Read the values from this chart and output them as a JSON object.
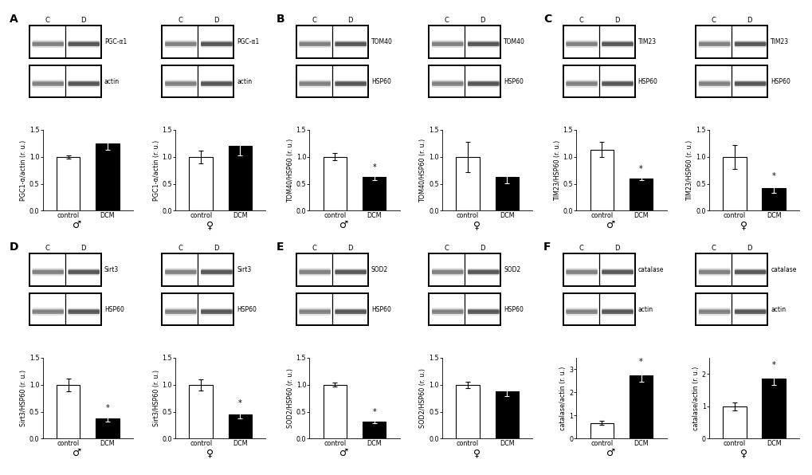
{
  "panels": [
    {
      "label": "A",
      "ylabel": "PGC1-α/actin (r. u.)",
      "blot_top": "PGC-α1",
      "blot_bottom": "actin",
      "male": {
        "control_val": 1.0,
        "control_sem": 0.03,
        "dcm_val": 1.25,
        "dcm_sem": 0.12,
        "significant": false,
        "ylim": [
          0,
          1.5
        ],
        "yticks": [
          0.0,
          0.5,
          1.0,
          1.5
        ]
      },
      "female": {
        "control_val": 1.0,
        "control_sem": 0.12,
        "dcm_val": 1.2,
        "dcm_sem": 0.18,
        "significant": false,
        "ylim": [
          0,
          1.5
        ],
        "yticks": [
          0.0,
          0.5,
          1.0,
          1.5
        ]
      }
    },
    {
      "label": "B",
      "ylabel": "TOM40/HSP60 (r. u.)",
      "blot_top": "TOM40",
      "blot_bottom": "HSP60",
      "male": {
        "control_val": 1.0,
        "control_sem": 0.07,
        "dcm_val": 0.62,
        "dcm_sem": 0.05,
        "significant": true,
        "ylim": [
          0,
          1.5
        ],
        "yticks": [
          0.0,
          0.5,
          1.0,
          1.5
        ]
      },
      "female": {
        "control_val": 1.0,
        "control_sem": 0.28,
        "dcm_val": 0.63,
        "dcm_sem": 0.12,
        "significant": false,
        "ylim": [
          0,
          1.5
        ],
        "yticks": [
          0.0,
          0.5,
          1.0,
          1.5
        ]
      }
    },
    {
      "label": "C",
      "ylabel": "TIM23/HSP60 (r. u.)",
      "blot_top": "TIM23",
      "blot_bottom": "HSP60",
      "male": {
        "control_val": 1.13,
        "control_sem": 0.14,
        "dcm_val": 0.6,
        "dcm_sem": 0.04,
        "significant": true,
        "ylim": [
          0,
          1.5
        ],
        "yticks": [
          0.0,
          0.5,
          1.0,
          1.5
        ]
      },
      "female": {
        "control_val": 1.0,
        "control_sem": 0.22,
        "dcm_val": 0.42,
        "dcm_sem": 0.09,
        "significant": true,
        "ylim": [
          0,
          1.5
        ],
        "yticks": [
          0.0,
          0.5,
          1.0,
          1.5
        ]
      }
    },
    {
      "label": "D",
      "ylabel": "Sirt3/HSP60 (r. u.)",
      "blot_top": "Sirt3",
      "blot_bottom": "HSP60",
      "male": {
        "control_val": 1.0,
        "control_sem": 0.12,
        "dcm_val": 0.38,
        "dcm_sem": 0.06,
        "significant": true,
        "ylim": [
          0,
          1.5
        ],
        "yticks": [
          0.0,
          0.5,
          1.0,
          1.5
        ]
      },
      "female": {
        "control_val": 1.0,
        "control_sem": 0.1,
        "dcm_val": 0.45,
        "dcm_sem": 0.08,
        "significant": true,
        "ylim": [
          0,
          1.5
        ],
        "yticks": [
          0.0,
          0.5,
          1.0,
          1.5
        ]
      }
    },
    {
      "label": "E",
      "ylabel": "SOD2/HSP60 (r. u.)",
      "blot_top": "SOD2",
      "blot_bottom": "HSP60",
      "male": {
        "control_val": 1.0,
        "control_sem": 0.04,
        "dcm_val": 0.32,
        "dcm_sem": 0.04,
        "significant": true,
        "ylim": [
          0,
          1.5
        ],
        "yticks": [
          0.0,
          0.5,
          1.0,
          1.5
        ]
      },
      "female": {
        "control_val": 1.0,
        "control_sem": 0.06,
        "dcm_val": 0.88,
        "dcm_sem": 0.09,
        "significant": false,
        "ylim": [
          0,
          1.5
        ],
        "yticks": [
          0.0,
          0.5,
          1.0,
          1.5
        ]
      }
    },
    {
      "label": "F",
      "ylabel": "catalase/actin (r. u.)",
      "blot_top": "catalase",
      "blot_bottom": "actin",
      "male": {
        "control_val": 0.68,
        "control_sem": 0.09,
        "dcm_val": 2.75,
        "dcm_sem": 0.28,
        "significant": true,
        "ylim": [
          0,
          3.5
        ],
        "yticks": [
          0,
          1,
          2,
          3
        ]
      },
      "female": {
        "control_val": 1.0,
        "control_sem": 0.12,
        "dcm_val": 1.85,
        "dcm_sem": 0.2,
        "significant": true,
        "ylim": [
          0,
          2.5
        ],
        "yticks": [
          0,
          1,
          2
        ]
      }
    }
  ],
  "bar_width": 0.6,
  "control_color": "#ffffff",
  "dcm_color": "#000000",
  "bar_edgecolor": "#000000",
  "background_color": "#ffffff",
  "font_size_ylabel": 5.8,
  "font_size_tick": 5.8,
  "font_size_panel_label": 10,
  "font_size_blot_label": 5.5,
  "font_size_cd": 6.0,
  "font_size_symbol": 9,
  "male_symbol": "♂",
  "female_symbol": "♀"
}
